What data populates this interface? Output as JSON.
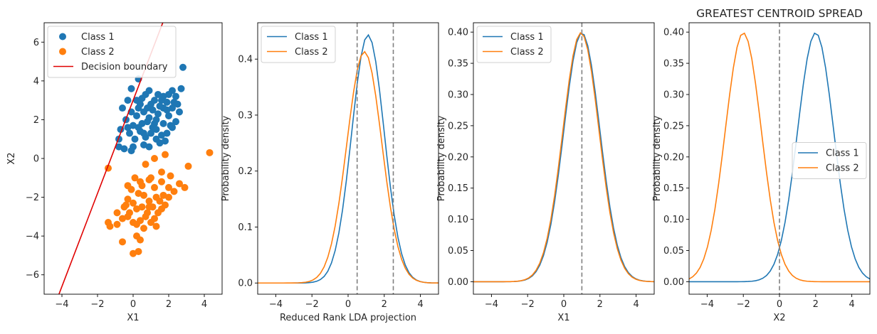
{
  "colors": {
    "class1": "#1f77b4",
    "class2": "#ff7f0e",
    "boundary": "#e00000",
    "vline": "#808080"
  },
  "chart_data": [
    {
      "type": "scatter",
      "title": "",
      "xlabel": "X1",
      "ylabel": "X2",
      "xlim": [
        -5,
        5
      ],
      "ylim": [
        -7,
        7
      ],
      "xticks": [
        -4,
        -2,
        0,
        2,
        4
      ],
      "yticks": [
        -6,
        -4,
        -2,
        0,
        2,
        4,
        6
      ],
      "legend_position": "top-left",
      "series": [
        {
          "name": "Class 1",
          "color": "#1f77b4",
          "points": [
            [
              0.3,
              4.1
            ],
            [
              0.9,
              3.5
            ],
            [
              1.4,
              3.3
            ],
            [
              1.7,
              3.2
            ],
            [
              2.2,
              3.5
            ],
            [
              2.4,
              3.2
            ],
            [
              2.8,
              4.7
            ],
            [
              2.7,
              3.6
            ],
            [
              2.6,
              2.4
            ],
            [
              2.2,
              2.6
            ],
            [
              1.9,
              2.9
            ],
            [
              1.7,
              2.6
            ],
            [
              1.2,
              3.0
            ],
            [
              1.0,
              2.8
            ],
            [
              0.5,
              3.1
            ],
            [
              0.2,
              3.0
            ],
            [
              -0.3,
              3.0
            ],
            [
              -0.6,
              2.6
            ],
            [
              -0.1,
              2.4
            ],
            [
              0.2,
              2.2
            ],
            [
              0.6,
              2.4
            ],
            [
              0.9,
              2.1
            ],
            [
              1.3,
              2.0
            ],
            [
              1.7,
              1.8
            ],
            [
              2.1,
              1.7
            ],
            [
              2.4,
              1.9
            ],
            [
              2.0,
              2.2
            ],
            [
              1.4,
              2.3
            ],
            [
              1.1,
              1.6
            ],
            [
              0.8,
              1.9
            ],
            [
              0.5,
              1.8
            ],
            [
              0.3,
              1.6
            ],
            [
              0.0,
              1.7
            ],
            [
              -0.4,
              2.0
            ],
            [
              -0.7,
              1.5
            ],
            [
              -0.2,
              1.3
            ],
            [
              0.1,
              1.0
            ],
            [
              0.4,
              1.4
            ],
            [
              0.7,
              1.1
            ],
            [
              1.0,
              1.3
            ],
            [
              1.3,
              1.5
            ],
            [
              1.6,
              1.2
            ],
            [
              1.9,
              1.3
            ],
            [
              2.2,
              1.6
            ],
            [
              1.5,
              0.8
            ],
            [
              1.8,
              0.9
            ],
            [
              0.9,
              0.6
            ],
            [
              0.6,
              0.7
            ],
            [
              0.0,
              0.6
            ],
            [
              -0.5,
              0.5
            ],
            [
              -0.8,
              0.6
            ],
            [
              -0.8,
              1.0
            ],
            [
              -0.3,
              1.6
            ],
            [
              0.3,
              2.6
            ],
            [
              1.1,
              2.5
            ],
            [
              1.9,
              2.5
            ],
            [
              2.5,
              2.8
            ],
            [
              2.0,
              3.3
            ],
            [
              1.6,
              3.0
            ],
            [
              0.7,
              3.3
            ],
            [
              -0.1,
              3.6
            ],
            [
              0.4,
              2.8
            ],
            [
              1.2,
              1.8
            ],
            [
              0.6,
              1.3
            ],
            [
              -0.1,
              0.4
            ],
            [
              1.3,
              1.0
            ],
            [
              2.3,
              2.9
            ],
            [
              1.5,
              2.7
            ],
            [
              0.8,
              2.6
            ]
          ]
        },
        {
          "name": "Class 2",
          "color": "#ff7f0e",
          "points": [
            [
              4.3,
              0.3
            ],
            [
              3.1,
              -0.4
            ],
            [
              2.9,
              -1.5
            ],
            [
              2.6,
              -1.3
            ],
            [
              1.8,
              0.2
            ],
            [
              1.6,
              -0.7
            ],
            [
              1.2,
              0.0
            ],
            [
              -1.4,
              -0.5
            ],
            [
              -0.3,
              -1.4
            ],
            [
              0.1,
              -1.0
            ],
            [
              0.5,
              -1.4
            ],
            [
              0.9,
              -1.1
            ],
            [
              1.2,
              -1.5
            ],
            [
              1.6,
              -1.2
            ],
            [
              2.0,
              -1.5
            ],
            [
              2.3,
              -1.7
            ],
            [
              2.0,
              -2.0
            ],
            [
              1.7,
              -1.9
            ],
            [
              1.3,
              -2.0
            ],
            [
              0.9,
              -2.2
            ],
            [
              0.6,
              -1.9
            ],
            [
              0.3,
              -1.8
            ],
            [
              0.0,
              -2.3
            ],
            [
              -0.3,
              -2.1
            ],
            [
              -0.5,
              -2.5
            ],
            [
              -0.2,
              -2.8
            ],
            [
              0.2,
              -2.6
            ],
            [
              0.5,
              -2.5
            ],
            [
              0.8,
              -2.8
            ],
            [
              1.1,
              -2.5
            ],
            [
              1.4,
              -2.8
            ],
            [
              1.8,
              -2.4
            ],
            [
              -0.9,
              -2.8
            ],
            [
              -0.6,
              -3.1
            ],
            [
              -0.3,
              -3.0
            ],
            [
              0.0,
              -3.3
            ],
            [
              0.4,
              -3.2
            ],
            [
              0.7,
              -3.0
            ],
            [
              1.0,
              -3.3
            ],
            [
              1.3,
              -3.5
            ],
            [
              -1.4,
              -3.3
            ],
            [
              -1.3,
              -3.5
            ],
            [
              -0.9,
              -3.4
            ],
            [
              -0.6,
              -4.3
            ],
            [
              0.2,
              -4.0
            ],
            [
              0.4,
              -4.2
            ],
            [
              0.3,
              -4.8
            ],
            [
              0.0,
              -4.9
            ],
            [
              1.2,
              -3.1
            ],
            [
              0.6,
              -3.6
            ],
            [
              -0.1,
              -1.6
            ],
            [
              0.7,
              -0.3
            ],
            [
              1.5,
              -2.2
            ],
            [
              0.4,
              -1.2
            ],
            [
              0.9,
              -2.5
            ],
            [
              -0.4,
              -2.4
            ],
            [
              2.1,
              -0.9
            ],
            [
              1.0,
              -1.0
            ],
            [
              0.2,
              -3.4
            ],
            [
              1.6,
              -2.6
            ]
          ]
        }
      ],
      "boundary": {
        "name": "Decision boundary",
        "color": "#e00000",
        "slope": 2.4,
        "intercept": 3.0
      }
    },
    {
      "type": "line",
      "title": "",
      "xlabel": "Reduced Rank LDA projection",
      "ylabel": "Probability density",
      "xlim": [
        -5,
        5
      ],
      "ylim": [
        -0.02,
        0.465
      ],
      "xticks": [
        -4,
        -2,
        0,
        2,
        4
      ],
      "yticks": [
        0.0,
        0.1,
        0.2,
        0.3,
        0.4
      ],
      "legend_position": "top-left",
      "series": [
        {
          "name": "Class 1",
          "color": "#1f77b4",
          "mean": 1.1,
          "sd": 0.9
        },
        {
          "name": "Class 2",
          "color": "#ff7f0e",
          "mean": 0.9,
          "sd": 0.965
        }
      ],
      "vlines": [
        0.5,
        2.5
      ]
    },
    {
      "type": "line",
      "title": "",
      "xlabel": "X1",
      "ylabel": "Probability density",
      "xlim": [
        -5,
        5
      ],
      "ylim": [
        -0.02,
        0.415
      ],
      "xticks": [
        -4,
        -2,
        0,
        2,
        4
      ],
      "yticks": [
        0.0,
        0.05,
        0.1,
        0.15,
        0.2,
        0.25,
        0.3,
        0.35,
        0.4
      ],
      "legend_position": "top-left",
      "series": [
        {
          "name": "Class 1",
          "color": "#1f77b4",
          "mean": 1.0,
          "sd": 1.0
        },
        {
          "name": "Class 2",
          "color": "#ff7f0e",
          "mean": 0.95,
          "sd": 1.0
        }
      ],
      "vlines": [
        1.0
      ]
    },
    {
      "type": "line",
      "title": "GREATEST CENTROID SPREAD",
      "xlabel": "X2",
      "ylabel": "Probability density",
      "xlim": [
        -5,
        5
      ],
      "ylim": [
        -0.02,
        0.415
      ],
      "xticks": [
        -4,
        -2,
        0,
        2,
        4
      ],
      "yticks": [
        0.0,
        0.05,
        0.1,
        0.15,
        0.2,
        0.25,
        0.3,
        0.35,
        0.4
      ],
      "legend_position": "center-right",
      "series": [
        {
          "name": "Class 1",
          "color": "#1f77b4",
          "mean": 2.0,
          "sd": 1.0
        },
        {
          "name": "Class 2",
          "color": "#ff7f0e",
          "mean": -2.0,
          "sd": 1.0
        }
      ],
      "vlines": [
        0.0
      ]
    }
  ]
}
